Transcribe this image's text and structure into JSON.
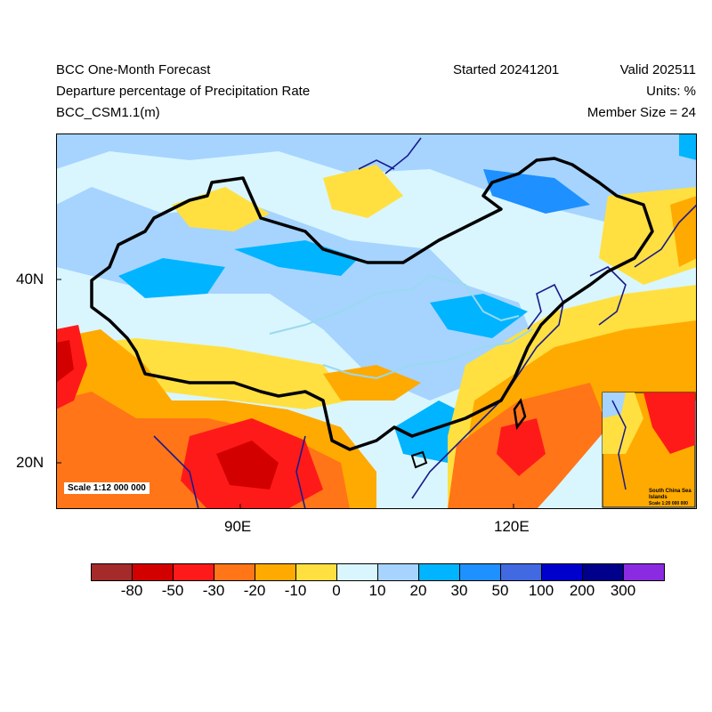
{
  "header": {
    "title": "BCC One-Month Forecast",
    "variable": "Departure percentage of Precipitation Rate",
    "model": "BCC_CSM1.1(m)",
    "started": "Started 20241201",
    "valid": "Valid 202511",
    "units": "Units: %",
    "member_size": "Member Size = 24"
  },
  "map": {
    "lat_ticks": [
      "40N",
      "20N"
    ],
    "lon_ticks": [
      "90E",
      "120E"
    ],
    "scale_label": "Scale 1:12 000 000",
    "inset": {
      "title": "South China Sea Islands",
      "scale": "Scale 1:20 000 000"
    }
  },
  "legend": {
    "labels": [
      "-80",
      "-50",
      "-30",
      "-20",
      "-10",
      "0",
      "10",
      "20",
      "30",
      "50",
      "100",
      "200",
      "300"
    ],
    "colors": [
      "#a52a2a",
      "#d30000",
      "#ff1a1a",
      "#ff7518",
      "#ffaa00",
      "#ffe040",
      "#d9f6ff",
      "#a6d4ff",
      "#00b4ff",
      "#1e90ff",
      "#4169e1",
      "#0000cd",
      "#00008b",
      "#8a2be2"
    ]
  },
  "colors": {
    "border_china": "#000000",
    "coast": "#1a1a8c",
    "river": "#9ad9ee"
  }
}
